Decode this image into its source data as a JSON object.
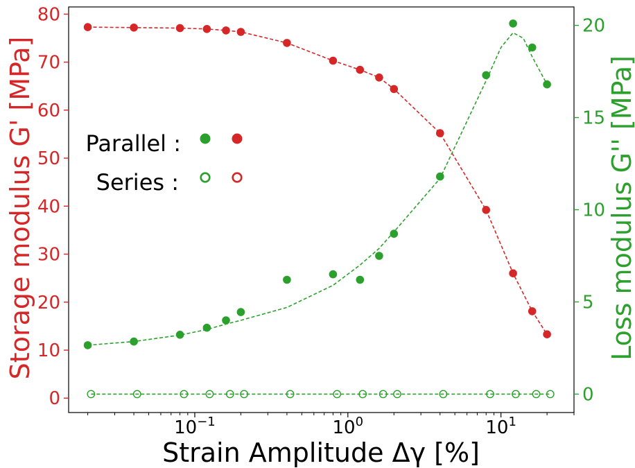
{
  "chart_data": {
    "type": "scatter",
    "title": "",
    "xlabel": "Strain Amplitude Δγ [%]",
    "ylabel_left": "Storage modulus G' [MPa]",
    "ylabel_right": "Loss modulus G'' [MPa]",
    "xscale": "log",
    "xlim": [
      0.015,
      30
    ],
    "ylim_left": [
      -3,
      81.5
    ],
    "ylim_right": [
      -1,
      21
    ],
    "x_ticks": [
      {
        "value": 0.1,
        "base": "10",
        "exp": "−1"
      },
      {
        "value": 1,
        "base": "10",
        "exp": "0"
      },
      {
        "value": 10,
        "base": "10",
        "exp": "1"
      }
    ],
    "y_left_ticks": [
      "0",
      "10",
      "20",
      "30",
      "40",
      "50",
      "60",
      "70",
      "80"
    ],
    "y_right_ticks": [
      "0",
      "5",
      "10",
      "15",
      "20"
    ],
    "colors": {
      "storage": "#d62728",
      "loss": "#2ca02c"
    },
    "legend": {
      "placement": "center-left",
      "entries": [
        {
          "label": "Parallel :",
          "style": "filled"
        },
        {
          "label": "Series :",
          "style": "hollow"
        }
      ]
    },
    "series": [
      {
        "axis": "left",
        "color": "#d62728",
        "marker": "filled",
        "x": [
          0.02,
          0.04,
          0.08,
          0.12,
          0.16,
          0.2,
          0.4,
          0.8,
          1.2,
          1.6,
          2,
          4,
          8,
          12,
          16,
          20
        ],
        "y": [
          77.3,
          77.2,
          77.1,
          76.9,
          76.6,
          76.3,
          74.0,
          70.3,
          68.4,
          66.8,
          64.4,
          55.2,
          39.2,
          26.0,
          18.1,
          13.3
        ]
      },
      {
        "axis": "left",
        "color": "#d62728",
        "marker": "line",
        "x": [
          0.02,
          0.04,
          0.08,
          0.12,
          0.16,
          0.2,
          0.4,
          0.8,
          1.2,
          1.6,
          2,
          4,
          8,
          12,
          16,
          20
        ],
        "y": [
          77.3,
          77.2,
          77.1,
          76.9,
          76.6,
          76.3,
          74.0,
          70.3,
          68.4,
          66.8,
          64.4,
          55.2,
          39.2,
          26.0,
          18.1,
          13.3
        ]
      },
      {
        "axis": "right",
        "color": "#2ca02c",
        "marker": "filled",
        "x": [
          0.02,
          0.04,
          0.08,
          0.12,
          0.16,
          0.2,
          0.4,
          0.8,
          1.2,
          1.6,
          2,
          4,
          8,
          12,
          16,
          20
        ],
        "y": [
          2.65,
          2.85,
          3.22,
          3.6,
          4.0,
          4.45,
          6.2,
          6.5,
          6.2,
          7.5,
          8.7,
          11.8,
          17.3,
          20.1,
          18.8,
          16.8
        ]
      },
      {
        "axis": "right",
        "color": "#2ca02c",
        "marker": "line",
        "x": [
          0.02,
          0.04,
          0.08,
          0.12,
          0.16,
          0.2,
          0.4,
          0.8,
          1.2,
          1.6,
          2,
          4,
          8,
          10,
          12,
          14,
          16,
          20
        ],
        "y": [
          2.65,
          2.85,
          3.2,
          3.5,
          3.8,
          4.0,
          4.7,
          5.9,
          7.0,
          7.9,
          8.8,
          11.7,
          17.0,
          18.8,
          19.6,
          19.3,
          18.3,
          16.8
        ]
      },
      {
        "axis": "right",
        "color": "#2ca02c",
        "marker": "hollow",
        "x": [
          0.021,
          0.042,
          0.085,
          0.125,
          0.17,
          0.21,
          0.42,
          0.85,
          1.25,
          1.7,
          2.1,
          4.2,
          8.5,
          12.5,
          17,
          21
        ],
        "y": [
          0,
          0,
          0,
          0,
          0,
          0,
          0,
          0,
          0,
          0,
          0,
          0,
          0,
          0,
          0,
          0
        ]
      },
      {
        "axis": "right",
        "color": "#2ca02c",
        "marker": "line",
        "x": [
          0.021,
          0.042,
          0.085,
          0.125,
          0.17,
          0.21,
          0.42,
          0.85,
          1.25,
          1.7,
          2.1,
          4.2,
          8.5,
          12.5,
          17,
          21
        ],
        "y": [
          0,
          0,
          0,
          0,
          0,
          0,
          0,
          0,
          0,
          0,
          0,
          0,
          0,
          0,
          0,
          0
        ]
      }
    ]
  }
}
